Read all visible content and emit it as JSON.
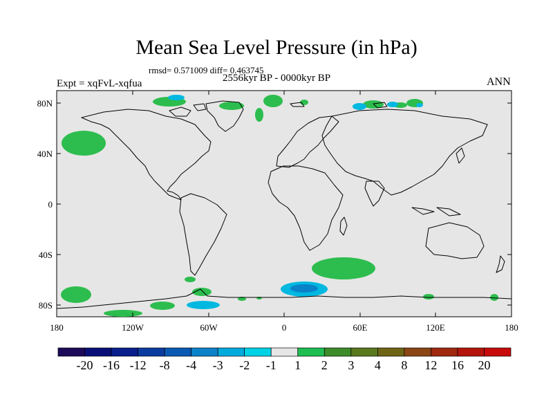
{
  "title": "Mean Sea Level Pressure (in hPa)",
  "stats": "rmsd= 0.571009 diff= 0.463745",
  "experiment": "Expt = xqFvL-xqfua",
  "period": "2556kyr BP - 0000kyr BP",
  "season": "ANN",
  "lat_ticks": [
    "80N",
    "40N",
    "0",
    "40S",
    "80S"
  ],
  "lon_ticks": [
    "180",
    "120W",
    "60W",
    "0",
    "60E",
    "120E",
    "180"
  ],
  "colorbar": {
    "labels": [
      "-20",
      "-16",
      "-12",
      "-8",
      "-4",
      "-3",
      "-2",
      "-1",
      "1",
      "2",
      "3",
      "4",
      "8",
      "12",
      "16",
      "20"
    ],
    "colors": [
      "#1e0a5a",
      "#0a0f78",
      "#0a1e8c",
      "#0a3ca0",
      "#0a5ab4",
      "#0a82c8",
      "#00aadc",
      "#00d2e6",
      "#e6e6e6",
      "#1ebe50",
      "#3c8c28",
      "#5a781e",
      "#6e6414",
      "#8c4614",
      "#a0280f",
      "#b4140a",
      "#c80a0a"
    ]
  },
  "colors": {
    "ocean_land_background": "#e6e6e6",
    "positive_anomaly": "#2dbd4e",
    "negative_anomaly": "#00b8e0",
    "strong_negative": "#0a82c8",
    "coastline": "#000000"
  }
}
